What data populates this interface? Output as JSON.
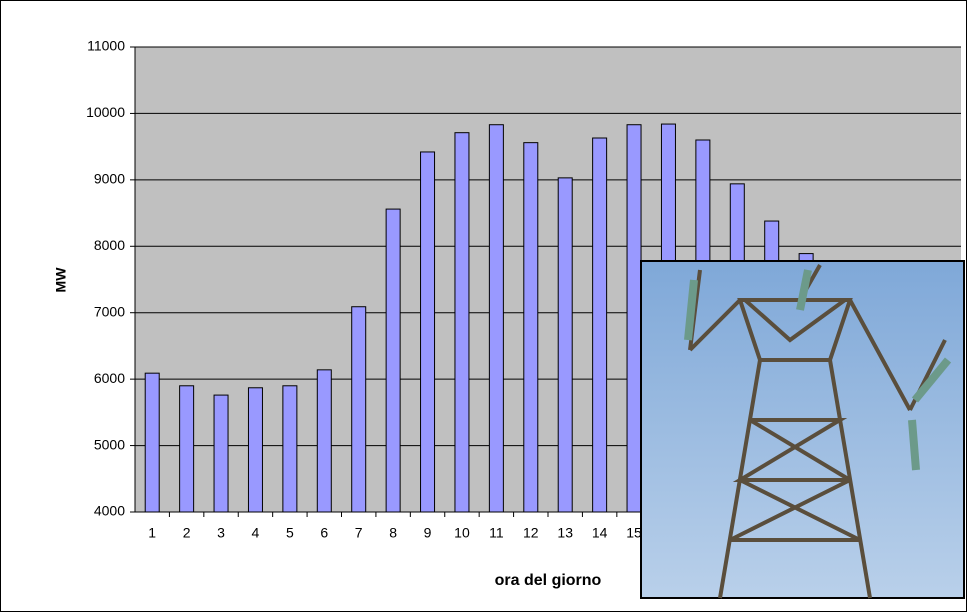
{
  "chart_data": {
    "type": "bar",
    "y_label": "MW",
    "x_label": "ora del giorno",
    "categories": [
      "1",
      "2",
      "3",
      "4",
      "5",
      "6",
      "7",
      "8",
      "9",
      "10",
      "11",
      "12",
      "13",
      "14",
      "15",
      null,
      null,
      null,
      null,
      null,
      null,
      null,
      null,
      null
    ],
    "values": [
      6090,
      5900,
      5760,
      5870,
      5900,
      6140,
      7090,
      8560,
      9420,
      9710,
      9830,
      9560,
      9030,
      9630,
      9830,
      9840,
      9600,
      8940,
      8380,
      7890,
      null,
      null,
      null,
      null
    ],
    "color": "#9999ff",
    "ylim": [
      4000,
      11000
    ],
    "yticks": [
      4000,
      5000,
      6000,
      7000,
      8000,
      9000,
      10000,
      11000
    ],
    "grid": true
  }
}
